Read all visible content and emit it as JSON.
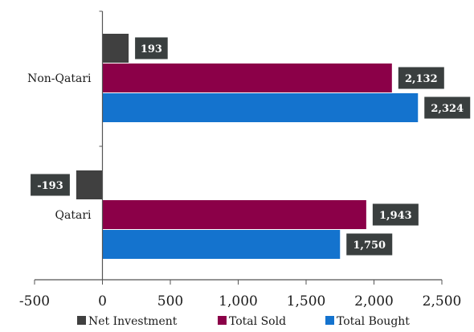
{
  "chart_data": {
    "type": "bar",
    "orientation": "horizontal",
    "categories": [
      "Non-Qatari",
      "Qatari"
    ],
    "series": [
      {
        "name": "Net Investment",
        "color": "#404040",
        "values": [
          193,
          -193
        ],
        "labels": [
          "193",
          "-193"
        ]
      },
      {
        "name": "Total Sold",
        "color": "#8B0048",
        "values": [
          2132,
          1943
        ],
        "labels": [
          "2,132",
          "1,943"
        ]
      },
      {
        "name": "Total Bought",
        "color": "#1473CE",
        "values": [
          2324,
          1750
        ],
        "labels": [
          "2,324",
          "1,750"
        ]
      }
    ],
    "x_ticks": [
      -500,
      0,
      500,
      1000,
      1500,
      2000,
      2500
    ],
    "x_tick_labels": [
      "-500",
      "0",
      "500",
      "1,000",
      "1,500",
      "2,000",
      "2,500"
    ],
    "xlim": [
      -500,
      2500
    ],
    "grid": false,
    "legend_position": "bottom",
    "label_box_color": "#3a3f3f"
  }
}
